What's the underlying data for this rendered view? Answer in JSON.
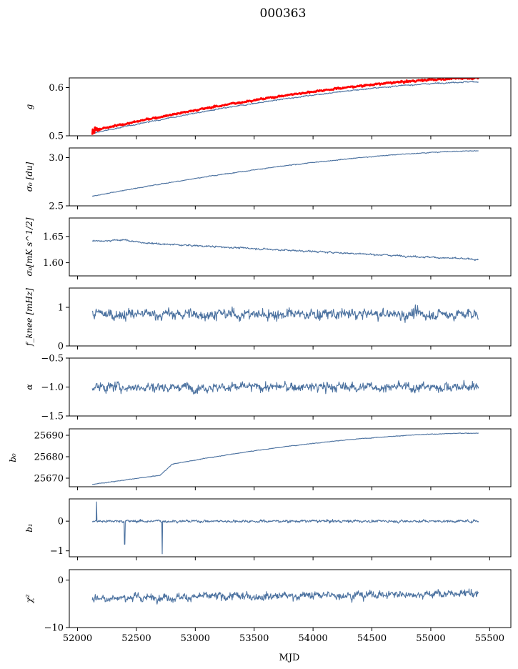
{
  "figure": {
    "title": "000363",
    "xlabel": "MJD"
  },
  "chart_data": {
    "type": "line",
    "title": "000363",
    "xlabel": "MJD",
    "xlim": [
      51930,
      55680
    ],
    "xticks": [
      52000,
      52500,
      53000,
      53500,
      54000,
      54500,
      55000,
      55500
    ],
    "x_data_range": [
      52125,
      55405
    ],
    "panels": [
      {
        "id": "g",
        "ylabel": "g",
        "ylim": [
          0.5,
          0.62
        ],
        "yticks": [
          0.5,
          0.6
        ],
        "tick_decimals": 1,
        "series": [
          {
            "color": "#4c72a0",
            "start": 0.505,
            "end": 0.612,
            "shape": "concave",
            "noise": 0.0012,
            "width": 1.1
          },
          {
            "color": "#ff0000",
            "start": 0.51,
            "end": 0.62,
            "shape": "concave",
            "noise": 0.0018,
            "width": 2.6,
            "spike": 0.018
          }
        ]
      },
      {
        "id": "sigma0-du",
        "ylabel": "σ₀ [du]",
        "ylim": [
          2.5,
          3.1
        ],
        "yticks": [
          2.5,
          3.0
        ],
        "tick_decimals": 1,
        "series": [
          {
            "color": "#4c72a0",
            "start": 2.6,
            "end": 3.07,
            "shape": "concave",
            "noise": 0.004,
            "width": 1.1
          }
        ]
      },
      {
        "id": "sigma0-mks",
        "ylabel": "σ₀[mK s^1/2]",
        "ylim": [
          1.575,
          1.685
        ],
        "yticks": [
          1.6,
          1.65
        ],
        "tick_decimals": 2,
        "series": [
          {
            "color": "#4c72a0",
            "start": 1.642,
            "end": 1.606,
            "shape": "linear",
            "noise": 0.0016,
            "width": 1.1,
            "bump": 0.004
          }
        ]
      },
      {
        "id": "fknee",
        "ylabel": "f_knee [mHz]",
        "ylim": [
          0,
          1.5
        ],
        "yticks": [
          0,
          1
        ],
        "tick_decimals": 0,
        "series": [
          {
            "color": "#4c72a0",
            "start": 0.82,
            "end": 0.82,
            "shape": "flat",
            "noise": 0.14,
            "width": 1.1
          }
        ]
      },
      {
        "id": "alpha",
        "ylabel": "α",
        "ylim": [
          -1.5,
          -0.5
        ],
        "yticks": [
          -1.5,
          -1.0,
          -0.5
        ],
        "tick_decimals": 1,
        "series": [
          {
            "color": "#4c72a0",
            "start": -1.0,
            "end": -1.0,
            "shape": "flat",
            "noise": 0.08,
            "width": 1.1
          }
        ]
      },
      {
        "id": "b0",
        "ylabel": "b₀",
        "ylim": [
          25666,
          25693
        ],
        "yticks": [
          25670,
          25680,
          25690
        ],
        "tick_decimals": 0,
        "series": [
          {
            "color": "#4c72a0",
            "start": 25667.5,
            "end": 25691,
            "shape": "b0",
            "noise": 0.15,
            "width": 1.1
          }
        ]
      },
      {
        "id": "b1",
        "ylabel": "b₁",
        "ylim": [
          -1.2,
          0.75
        ],
        "yticks": [
          -1,
          0
        ],
        "tick_decimals": 0,
        "series": [
          {
            "color": "#4c72a0",
            "start": 0,
            "end": 0,
            "shape": "flat",
            "noise": 0.045,
            "width": 1.1,
            "dips": [
              [
                52400,
                -0.78
              ],
              [
                52720,
                -1.1
              ],
              [
                52160,
                0.65
              ]
            ]
          }
        ]
      },
      {
        "id": "chi2",
        "ylabel": "χ²",
        "ylim": [
          -10,
          2.2
        ],
        "yticks": [
          -10,
          0
        ],
        "tick_decimals": 0,
        "series": [
          {
            "color": "#4c72a0",
            "start": -3.8,
            "end": -2.8,
            "shape": "linear",
            "noise": 0.8,
            "width": 1.1
          }
        ]
      }
    ]
  }
}
